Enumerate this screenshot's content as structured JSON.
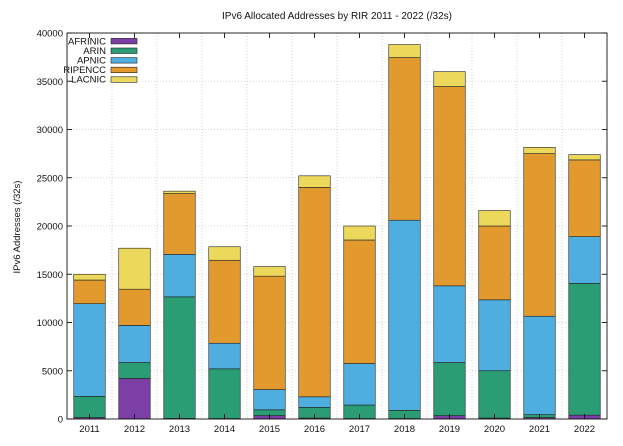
{
  "chart_data": {
    "type": "bar",
    "stacked": true,
    "title": "IPv6 Allocated Addresses by RIR 2011 - 2022 (/32s)",
    "ylabel": "IPv6 Addresses (/32s)",
    "xlabel": "",
    "ylim": [
      0,
      40000
    ],
    "yticks": [
      0,
      5000,
      10000,
      15000,
      20000,
      25000,
      30000,
      35000,
      40000
    ],
    "grid": true,
    "legend_position": "top-left",
    "categories": [
      "2011",
      "2012",
      "2013",
      "2014",
      "2015",
      "2016",
      "2017",
      "2018",
      "2019",
      "2020",
      "2021",
      "2022"
    ],
    "series": [
      {
        "name": "AFRINIC",
        "color": "#7b3fa6",
        "values": [
          150,
          4200,
          60,
          50,
          350,
          100,
          50,
          50,
          350,
          100,
          150,
          400
        ]
      },
      {
        "name": "ARIN",
        "color": "#2a9d74",
        "values": [
          2200,
          1650,
          12600,
          5150,
          600,
          1100,
          1400,
          850,
          5500,
          4900,
          300,
          13650
        ]
      },
      {
        "name": "APNIC",
        "color": "#4eaee0",
        "values": [
          9600,
          3850,
          4400,
          2650,
          2100,
          1100,
          4300,
          19700,
          7950,
          7350,
          10200,
          4850
        ]
      },
      {
        "name": "RIPENCC",
        "color": "#e29a2f",
        "values": [
          2450,
          3750,
          6300,
          8600,
          11750,
          21700,
          12800,
          16850,
          20650,
          7650,
          16850,
          7950
        ]
      },
      {
        "name": "LACNIC",
        "color": "#ecd85b",
        "values": [
          600,
          4250,
          250,
          1400,
          1000,
          1200,
          1450,
          1350,
          1550,
          1600,
          650,
          550
        ]
      }
    ]
  }
}
